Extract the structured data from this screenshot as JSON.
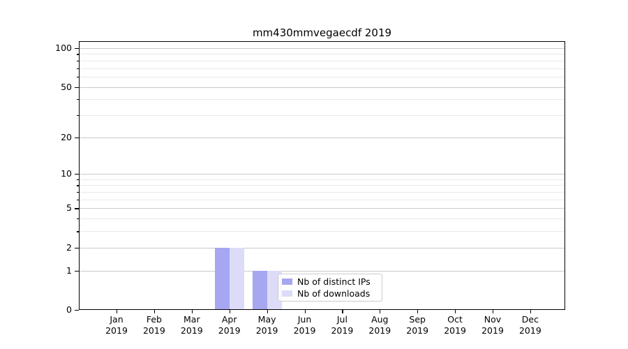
{
  "chart_data": {
    "type": "bar",
    "title": "mm430mmvegaecdf 2019",
    "year": "2019",
    "months": [
      "Jan",
      "Feb",
      "Mar",
      "Apr",
      "May",
      "Jun",
      "Jul",
      "Aug",
      "Sep",
      "Oct",
      "Nov",
      "Dec"
    ],
    "categories": [
      "Jan 2019",
      "Feb 2019",
      "Mar 2019",
      "Apr 2019",
      "May 2019",
      "Jun 2019",
      "Jul 2019",
      "Aug 2019",
      "Sep 2019",
      "Oct 2019",
      "Nov 2019",
      "Dec 2019"
    ],
    "series": [
      {
        "name": "Nb of distinct IPs",
        "color": "#a6a6f1",
        "values": [
          0,
          0,
          0,
          2,
          1,
          0,
          0,
          0,
          0,
          0,
          0,
          0
        ]
      },
      {
        "name": "Nb of downloads",
        "color": "#dcdcf9",
        "values": [
          0,
          0,
          0,
          2,
          1,
          0,
          0,
          0,
          0,
          0,
          0,
          0
        ]
      }
    ],
    "xlabel": "",
    "ylabel": "",
    "yscale": "log1p",
    "ylim": [
      0,
      113
    ],
    "y_major_ticks": [
      0,
      1,
      2,
      5,
      10,
      20,
      50,
      100
    ],
    "y_minor_ticks": [
      3,
      4,
      6,
      7,
      8,
      9,
      30,
      40,
      60,
      70,
      80,
      90
    ],
    "grid": "both",
    "legend": {
      "position": "inside-bottom-center-left",
      "labels": [
        "Nb of distinct IPs",
        "Nb of downloads"
      ]
    },
    "colors": {
      "background": "#ffffff",
      "grid_major": "#c9c9c9",
      "grid_minor": "#e9e9e9",
      "spine": "#000000",
      "text": "#000000"
    }
  }
}
